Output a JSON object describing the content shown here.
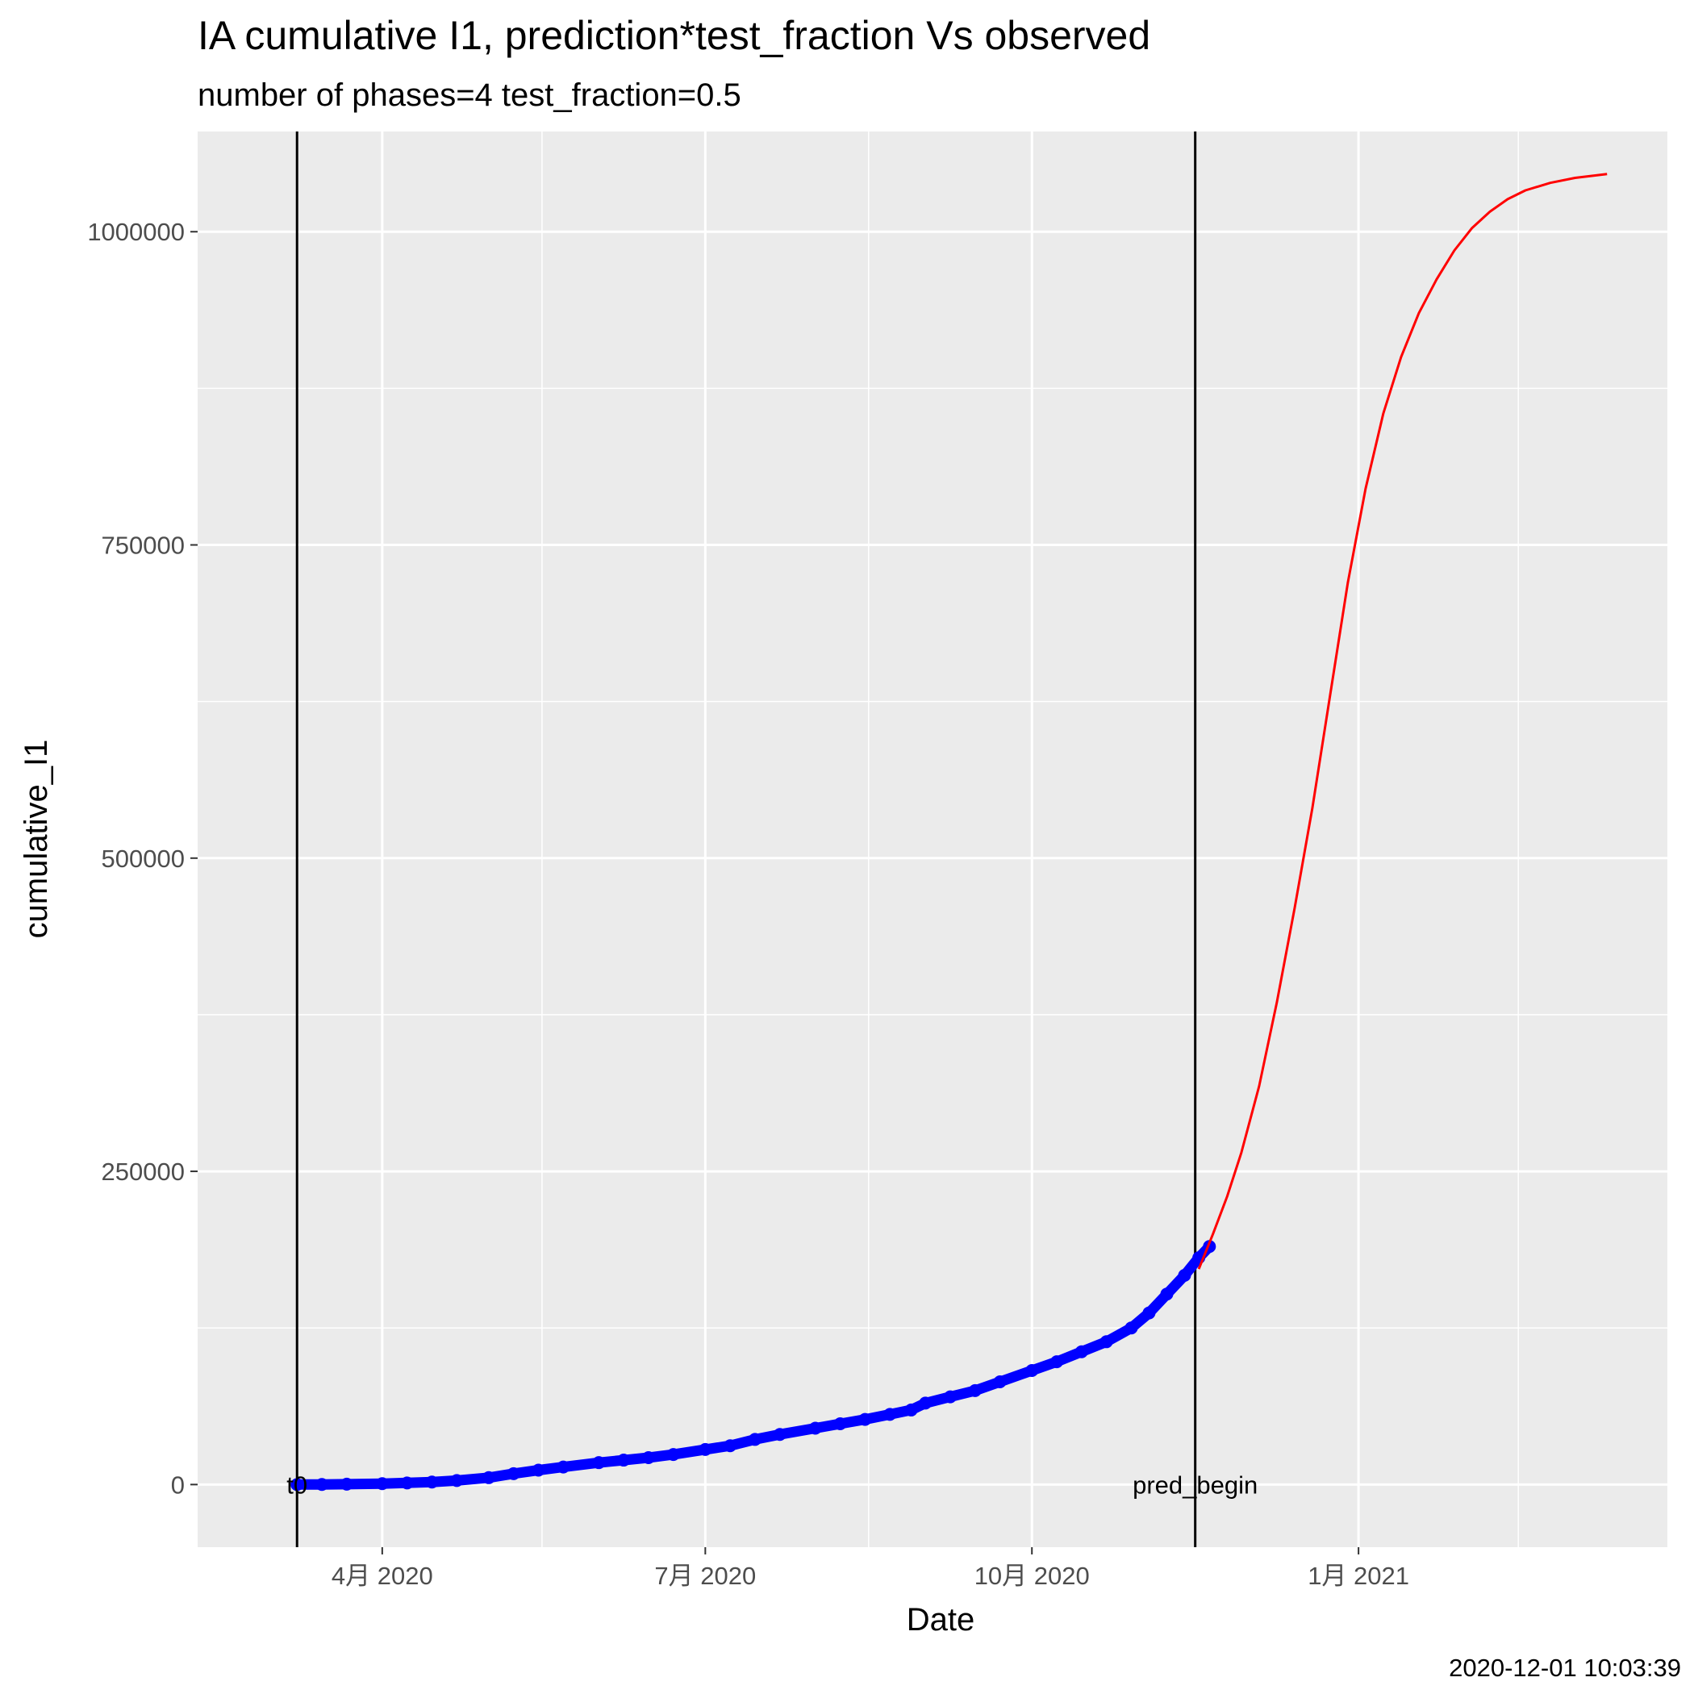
{
  "chart_data": {
    "type": "line",
    "title": "IA cumulative I1,  prediction*test_fraction Vs observed",
    "subtitle": "number of phases=4   test_fraction=0.5",
    "xlabel": "Date",
    "ylabel": "cumulative_I1",
    "caption": "2020-12-01 10:03:39",
    "xlim": [
      "2020-02-09",
      "2021-03-29"
    ],
    "ylim": [
      -50000,
      1080000
    ],
    "x_ticks": [
      {
        "date": "2020-04-01",
        "label": "4月 2020"
      },
      {
        "date": "2020-07-01",
        "label": "7月 2020"
      },
      {
        "date": "2020-10-01",
        "label": "10月 2020"
      },
      {
        "date": "2021-01-01",
        "label": "1月 2021"
      }
    ],
    "x_minor_ticks": [
      "2020-05-16",
      "2020-08-16",
      "2020-11-16",
      "2021-02-15"
    ],
    "y_ticks": [
      0,
      250000,
      500000,
      750000,
      1000000
    ],
    "y_tick_labels": [
      "0",
      "250000",
      "500000",
      "750000",
      "1000000"
    ],
    "y_minor_ticks": [
      125000,
      375000,
      625000,
      875000
    ],
    "grid": true,
    "panel_color": "#ebebeb",
    "vlines": [
      {
        "date": "2020-03-08",
        "label": "t0",
        "color": "#000000"
      },
      {
        "date": "2020-11-16",
        "label": "pred_begin",
        "color": "#000000"
      }
    ],
    "series": [
      {
        "name": "observed",
        "style": "points",
        "color": "#0000ff",
        "points": [
          [
            "2020-03-08",
            0
          ],
          [
            "2020-03-15",
            100
          ],
          [
            "2020-03-22",
            300
          ],
          [
            "2020-04-01",
            700
          ],
          [
            "2020-04-08",
            1300
          ],
          [
            "2020-04-15",
            2000
          ],
          [
            "2020-04-22",
            3200
          ],
          [
            "2020-05-01",
            5500
          ],
          [
            "2020-05-08",
            8700
          ],
          [
            "2020-05-15",
            11500
          ],
          [
            "2020-05-22",
            14000
          ],
          [
            "2020-06-01",
            17500
          ],
          [
            "2020-06-08",
            19500
          ],
          [
            "2020-06-15",
            21500
          ],
          [
            "2020-06-22",
            24000
          ],
          [
            "2020-07-01",
            28000
          ],
          [
            "2020-07-08",
            31000
          ],
          [
            "2020-07-15",
            36000
          ],
          [
            "2020-07-22",
            40000
          ],
          [
            "2020-08-01",
            45000
          ],
          [
            "2020-08-08",
            48500
          ],
          [
            "2020-08-15",
            52000
          ],
          [
            "2020-08-22",
            56000
          ],
          [
            "2020-08-28",
            59500
          ],
          [
            "2020-09-01",
            65000
          ],
          [
            "2020-09-08",
            70000
          ],
          [
            "2020-09-15",
            75000
          ],
          [
            "2020-09-22",
            82000
          ],
          [
            "2020-10-01",
            91000
          ],
          [
            "2020-10-08",
            98000
          ],
          [
            "2020-10-15",
            106000
          ],
          [
            "2020-10-22",
            114000
          ],
          [
            "2020-10-29",
            125000
          ],
          [
            "2020-11-03",
            137000
          ],
          [
            "2020-11-08",
            152000
          ],
          [
            "2020-11-13",
            167000
          ],
          [
            "2020-11-17",
            181000
          ],
          [
            "2020-11-20",
            190000
          ]
        ]
      },
      {
        "name": "prediction",
        "style": "line",
        "color": "#ff0000",
        "points": [
          [
            "2020-11-17",
            172000
          ],
          [
            "2020-11-21",
            200000
          ],
          [
            "2020-11-25",
            230000
          ],
          [
            "2020-11-29",
            265000
          ],
          [
            "2020-12-04",
            318000
          ],
          [
            "2020-12-09",
            385000
          ],
          [
            "2020-12-14",
            460000
          ],
          [
            "2020-12-19",
            540000
          ],
          [
            "2020-12-24",
            630000
          ],
          [
            "2020-12-29",
            720000
          ],
          [
            "2021-01-03",
            795000
          ],
          [
            "2021-01-08",
            855000
          ],
          [
            "2021-01-13",
            900000
          ],
          [
            "2021-01-18",
            935000
          ],
          [
            "2021-01-23",
            962000
          ],
          [
            "2021-01-28",
            985000
          ],
          [
            "2021-02-02",
            1003000
          ],
          [
            "2021-02-07",
            1016000
          ],
          [
            "2021-02-12",
            1026000
          ],
          [
            "2021-02-17",
            1033000
          ],
          [
            "2021-02-24",
            1039000
          ],
          [
            "2021-03-03",
            1043000
          ],
          [
            "2021-03-12",
            1046000
          ]
        ]
      }
    ]
  }
}
